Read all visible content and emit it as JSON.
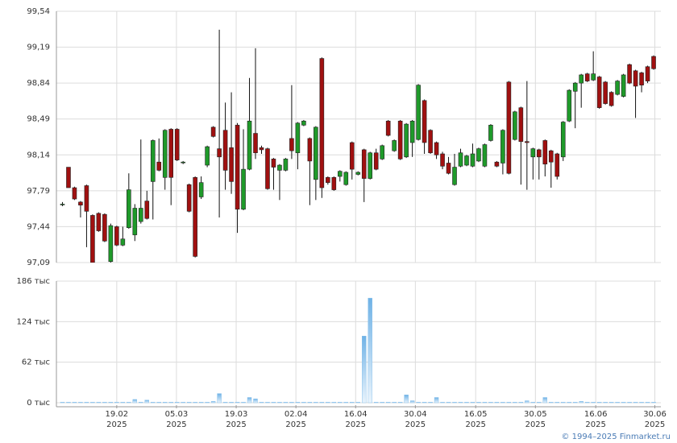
{
  "chart_data": {
    "type": "candlestick",
    "up_color": "#1f9a2a",
    "down_color": "#a01010",
    "volume_color": "#7dbbe9",
    "grid": true,
    "xlim": [
      -1,
      99.2
    ],
    "xticks": [
      {
        "value": 9,
        "label": "19.02",
        "year": "2025"
      },
      {
        "value": 18.9,
        "label": "05.03",
        "year": "2025"
      },
      {
        "value": 28.8,
        "label": "19.03",
        "year": "2025"
      },
      {
        "value": 38.7,
        "label": "02.04",
        "year": "2025"
      },
      {
        "value": 48.6,
        "label": "16.04",
        "year": "2025"
      },
      {
        "value": 58.5,
        "label": "30.04",
        "year": "2025"
      },
      {
        "value": 68.5,
        "label": "16.05",
        "year": "2025"
      },
      {
        "value": 78.4,
        "label": "30.05",
        "year": "2025"
      },
      {
        "value": 88.4,
        "label": "16.06",
        "year": "2025"
      },
      {
        "value": 98.2,
        "label": "30.06",
        "year": "2025"
      }
    ],
    "ylim": [
      97.09,
      99.54
    ],
    "yticks": [
      {
        "value": 97.09,
        "label": "97,09"
      },
      {
        "value": 97.44,
        "label": "97,44"
      },
      {
        "value": 97.79,
        "label": "97,79"
      },
      {
        "value": 98.14,
        "label": "98,14"
      },
      {
        "value": 98.49,
        "label": "98,49"
      },
      {
        "value": 98.84,
        "label": "98,84"
      },
      {
        "value": 99.19,
        "label": "99,19"
      },
      {
        "value": 99.54,
        "label": "99,54"
      }
    ],
    "volume_ylim": [
      0,
      186
    ],
    "volume_yticks": [
      {
        "value": 0,
        "label": "0 тыс"
      },
      {
        "value": 62,
        "label": "62 тыс"
      },
      {
        "value": 124,
        "label": "124 тыс"
      },
      {
        "value": 186,
        "label": "186 тыс"
      }
    ],
    "open": [
      97.66,
      98.02,
      97.82,
      97.68,
      97.84,
      97.55,
      97.57,
      97.56,
      97.1,
      97.44,
      97.26,
      97.43,
      97.36,
      97.49,
      97.69,
      97.88,
      98.07,
      97.92,
      98.39,
      98.39,
      98.07,
      97.85,
      97.92,
      97.73,
      98.04,
      98.41,
      98.2,
      98.38,
      98.21,
      98.43,
      97.61,
      98.0,
      98.35,
      98.21,
      98.2,
      98.1,
      97.99,
      97.99,
      98.3,
      98.16,
      98.43,
      98.3,
      97.9,
      99.08,
      97.92,
      97.92,
      97.93,
      97.85,
      98.26,
      97.95,
      98.19,
      97.91,
      98.16,
      98.1,
      98.47,
      98.18,
      98.47,
      98.12,
      98.26,
      98.29,
      98.67,
      98.38,
      98.26,
      98.15,
      98.06,
      97.85,
      98.03,
      98.04,
      98.03,
      98.08,
      98.03,
      98.28,
      98.07,
      98.06,
      98.85,
      98.29,
      98.6,
      98.27,
      98.12,
      98.19,
      98.28,
      98.18,
      98.15,
      98.12,
      98.47,
      98.76,
      98.84,
      98.93,
      98.87,
      98.9,
      98.85,
      98.75,
      98.73,
      98.71,
      99.02,
      98.96,
      98.94,
      99.0,
      99.1
    ],
    "high": [
      97.68,
      98.02,
      97.83,
      97.69,
      97.85,
      97.56,
      97.58,
      97.57,
      97.47,
      97.45,
      97.44,
      97.96,
      97.66,
      98.29,
      97.79,
      98.29,
      98.3,
      98.39,
      98.4,
      98.4,
      98.08,
      97.86,
      97.93,
      97.93,
      98.23,
      98.42,
      99.36,
      98.65,
      98.75,
      98.45,
      98.39,
      98.89,
      99.18,
      98.23,
      98.21,
      98.11,
      98.05,
      98.11,
      98.82,
      98.46,
      98.48,
      98.31,
      98.42,
      99.09,
      97.93,
      97.93,
      97.99,
      97.98,
      98.27,
      97.98,
      98.2,
      98.17,
      98.2,
      98.24,
      98.48,
      98.29,
      98.48,
      98.45,
      98.48,
      98.83,
      98.68,
      98.39,
      98.27,
      98.17,
      98.12,
      98.15,
      98.2,
      98.14,
      98.25,
      98.21,
      98.25,
      98.44,
      98.08,
      98.39,
      98.86,
      98.57,
      98.61,
      98.86,
      98.21,
      98.2,
      98.29,
      98.19,
      98.16,
      98.47,
      98.78,
      98.85,
      98.93,
      98.94,
      99.15,
      98.91,
      98.86,
      98.76,
      98.87,
      98.93,
      99.03,
      98.97,
      98.95,
      99.01,
      99.11
    ],
    "low": [
      97.64,
      97.82,
      97.7,
      97.53,
      97.24,
      97.05,
      97.39,
      97.29,
      97.07,
      97.25,
      97.25,
      97.42,
      97.3,
      97.47,
      97.51,
      97.51,
      97.98,
      97.8,
      97.65,
      98.08,
      98.05,
      97.58,
      97.14,
      97.71,
      98.02,
      98.31,
      97.53,
      97.8,
      97.76,
      97.38,
      97.6,
      97.99,
      98.1,
      98.15,
      97.8,
      97.8,
      97.7,
      97.98,
      98.1,
      98.0,
      98.42,
      97.65,
      97.7,
      97.72,
      97.85,
      97.79,
      97.88,
      97.84,
      97.9,
      97.94,
      97.68,
      97.9,
      97.99,
      98.09,
      98.32,
      98.17,
      98.09,
      98.11,
      98.12,
      98.28,
      98.15,
      98.15,
      98.1,
      98.0,
      97.95,
      97.84,
      98.02,
      98.03,
      98.02,
      98.07,
      98.02,
      98.27,
      98.02,
      97.95,
      97.95,
      98.28,
      97.85,
      97.8,
      97.9,
      97.9,
      97.93,
      97.82,
      97.9,
      98.08,
      98.46,
      98.4,
      98.6,
      98.85,
      98.86,
      98.59,
      98.63,
      98.61,
      98.72,
      98.7,
      98.83,
      98.5,
      98.75,
      98.84,
      98.97
    ],
    "close": [
      97.66,
      97.82,
      97.71,
      97.65,
      97.59,
      97.09,
      97.4,
      97.3,
      97.45,
      97.26,
      97.32,
      97.8,
      97.62,
      97.62,
      97.52,
      98.28,
      97.99,
      98.38,
      97.92,
      98.09,
      98.07,
      97.59,
      97.15,
      97.87,
      98.22,
      98.32,
      98.12,
      97.99,
      97.88,
      97.61,
      98.0,
      98.47,
      98.16,
      98.19,
      97.81,
      98.02,
      98.04,
      98.1,
      98.18,
      98.45,
      98.47,
      98.08,
      98.41,
      97.82,
      97.87,
      97.8,
      97.98,
      97.97,
      98.0,
      97.97,
      97.91,
      98.16,
      98.0,
      98.23,
      98.33,
      98.28,
      98.1,
      98.44,
      98.47,
      98.82,
      98.26,
      98.16,
      98.14,
      98.03,
      97.96,
      98.02,
      98.16,
      98.13,
      98.15,
      98.2,
      98.24,
      98.43,
      98.03,
      98.38,
      97.96,
      98.56,
      98.27,
      98.26,
      98.2,
      98.12,
      98.05,
      98.07,
      97.93,
      98.46,
      98.77,
      98.84,
      98.92,
      98.86,
      98.93,
      98.6,
      98.64,
      98.62,
      98.86,
      98.92,
      98.84,
      98.81,
      98.82,
      98.86,
      98.98
    ],
    "volume": [
      1,
      1,
      1,
      1,
      1,
      1,
      1,
      1,
      1,
      1,
      1,
      1,
      5,
      1,
      4,
      1,
      1,
      1,
      1,
      1,
      1,
      1,
      1,
      1,
      1,
      2,
      14,
      1,
      1,
      1,
      1,
      8,
      6,
      1,
      1,
      1,
      1,
      1,
      1,
      1,
      1,
      1,
      1,
      1,
      1,
      1,
      1,
      1,
      1,
      1,
      102,
      160,
      1,
      1,
      1,
      1,
      1,
      12,
      3,
      1,
      1,
      1,
      8,
      1,
      1,
      1,
      1,
      1,
      1,
      1,
      1,
      1,
      1,
      1,
      1,
      1,
      1,
      3,
      1,
      1,
      8,
      1,
      1,
      1,
      1,
      1,
      2,
      1,
      1,
      1,
      1,
      1,
      1,
      1,
      1,
      1,
      1,
      1,
      1
    ],
    "copyright": "© 1994–2025 Finmarket.ru"
  }
}
